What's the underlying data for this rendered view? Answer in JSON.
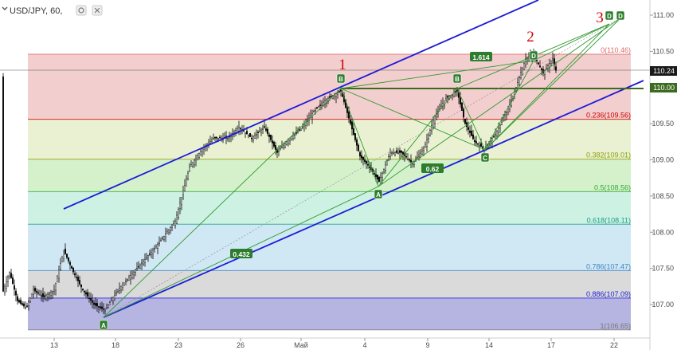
{
  "header": {
    "symbol": "USD/JPY, 60,",
    "icons": [
      "settings-icon",
      "close-icon"
    ]
  },
  "price_axis": {
    "last_price": "110.24",
    "level_tag": "110.00"
  },
  "colors": {
    "channel": "#1c1cd6",
    "harmonic": "#2e9a2e",
    "wave_labels": "#d40000",
    "candles": "#000000"
  },
  "chart_data": {
    "type": "line",
    "title": "USD/JPY, 60,",
    "ylim": [
      106.6,
      111.3
    ],
    "y_ticks": [
      "111.00",
      "110.50",
      "110.00",
      "109.50",
      "109.00",
      "108.50",
      "108.00",
      "107.50",
      "107.00"
    ],
    "x_ticks": [
      "13",
      "18",
      "23",
      "26",
      "Май",
      "4",
      "9",
      "14",
      "17",
      "22"
    ],
    "fibonacci": [
      {
        "label": "0(110.46)",
        "price": 110.46,
        "color": "#e06666"
      },
      {
        "label": "0.236(109.56)",
        "price": 109.56,
        "color": "#cc0000"
      },
      {
        "label": "0.382(109.01)",
        "price": 109.01,
        "color": "#8a9d00"
      },
      {
        "label": "0.5(108.56)",
        "price": 108.56,
        "color": "#33aa33"
      },
      {
        "label": "0.618(108.11)",
        "price": 108.11,
        "color": "#1aa08a"
      },
      {
        "label": "0.786(107.47)",
        "price": 107.47,
        "color": "#3d85c6"
      },
      {
        "label": "0.886(107.09)",
        "price": 107.09,
        "color": "#1c1cd6"
      },
      {
        "label": "1(106.65)",
        "price": 106.65,
        "color": "#777777"
      }
    ],
    "wave_labels": [
      "1",
      "2",
      "3"
    ],
    "pattern_points": [
      "A",
      "B",
      "A",
      "B",
      "C",
      "D",
      "D",
      "D"
    ],
    "ratio_labels": [
      "1.614",
      "0.62",
      "0.432"
    ],
    "price_path": [
      [
        "Apr 11",
        107.4
      ],
      [
        "Apr 12",
        107.2
      ],
      [
        "Apr 13",
        107.15
      ],
      [
        "Apr 14",
        107.6
      ],
      [
        "Apr 15",
        107.45
      ],
      [
        "Apr 16",
        107.1
      ],
      [
        "Apr 17",
        106.9
      ],
      [
        "Apr 18",
        107.3
      ],
      [
        "Apr 19",
        107.5
      ],
      [
        "Apr 20",
        107.8
      ],
      [
        "Apr 21",
        108.1
      ],
      [
        "Apr 23",
        108.9
      ],
      [
        "Apr 24",
        109.3
      ],
      [
        "Apr 25",
        109.5
      ],
      [
        "Apr 26",
        109.35
      ],
      [
        "Apr 27",
        109.3
      ],
      [
        "Apr 28",
        109.05
      ],
      [
        "Apr 29",
        109.35
      ],
      [
        "Apr 30",
        109.55
      ],
      [
        "May 1",
        109.9
      ],
      [
        "May 2",
        110.0
      ],
      [
        "May 3",
        109.1
      ],
      [
        "May 4",
        108.7
      ],
      [
        "May 5",
        109.1
      ],
      [
        "May 7",
        109.2
      ],
      [
        "May 8",
        109.0
      ],
      [
        "May 9",
        109.3
      ],
      [
        "May 10",
        109.6
      ],
      [
        "May 11",
        110.0
      ],
      [
        "May 12",
        109.5
      ],
      [
        "May 13",
        109.2
      ],
      [
        "May 14",
        109.3
      ],
      [
        "May 15",
        109.7
      ],
      [
        "May 16",
        110.35
      ],
      [
        "May 17",
        110.45
      ],
      [
        "May 18",
        110.2
      ],
      [
        "May 19",
        110.3
      ]
    ]
  }
}
